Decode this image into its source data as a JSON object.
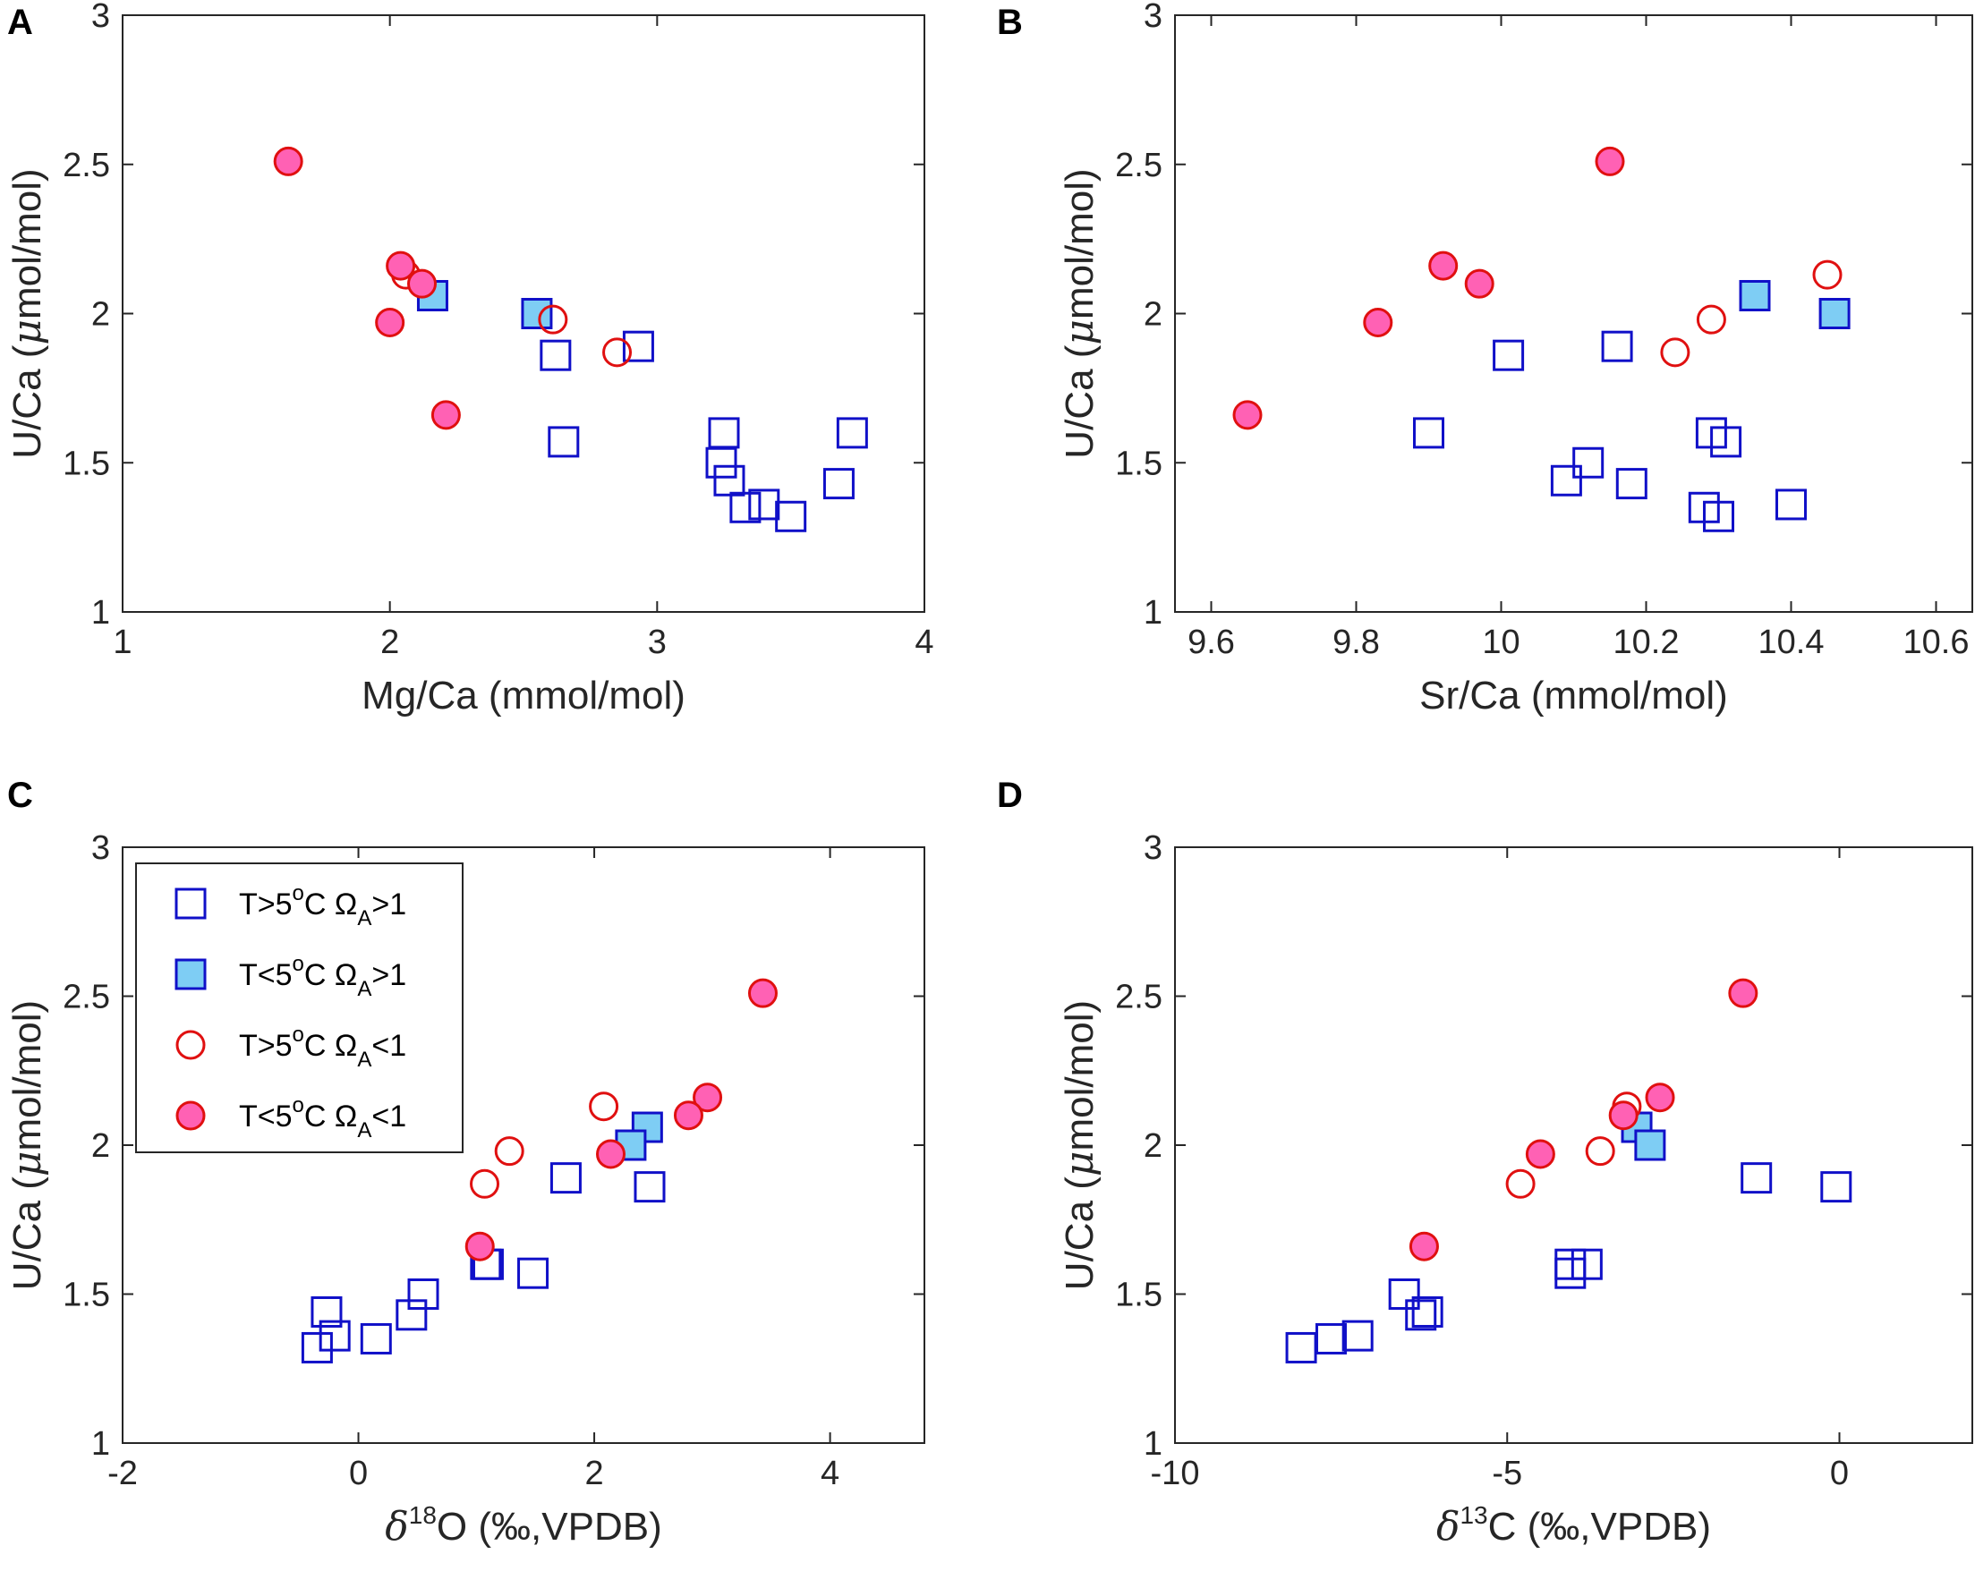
{
  "colors": {
    "blue": "#1010c8",
    "blue_fill": "#7ecdf4",
    "red": "#e01010",
    "pink_fill": "#ff61b4",
    "axis": "#262626"
  },
  "legend": {
    "entries": [
      {
        "key": "open_square",
        "T": "T>5",
        "omega": "Ω",
        "sub": "A",
        "rel": ">1"
      },
      {
        "key": "filled_square",
        "T": "T<5",
        "omega": "Ω",
        "sub": "A",
        "rel": ">1"
      },
      {
        "key": "open_circle",
        "T": "T>5",
        "omega": "Ω",
        "sub": "A",
        "rel": "<1"
      },
      {
        "key": "filled_circle",
        "T": "T<5",
        "omega": "Ω",
        "sub": "A",
        "rel": "<1"
      }
    ],
    "sup": "o",
    "unit": "C"
  },
  "chart_data": [
    {
      "panel": "A",
      "type": "scatter",
      "xlabel": "Mg/Ca (mmol/mol)",
      "ylabel": {
        "pre": "U/Ca (",
        "mu": "μ",
        "post": "mol/mol)"
      },
      "xlim": [
        1,
        4
      ],
      "ylim": [
        1,
        3
      ],
      "xticks": [
        1,
        2,
        3,
        4
      ],
      "xtick_labels": [
        "1",
        "2",
        "3",
        "4"
      ],
      "yticks": [
        1,
        1.5,
        2,
        2.5,
        3
      ],
      "ytick_labels": [
        "1",
        "1.5",
        "2",
        "2.5",
        "3"
      ],
      "series": [
        {
          "name": "open_square",
          "points": [
            [
              2.62,
              1.86
            ],
            [
              2.93,
              1.89
            ],
            [
              2.65,
              1.57
            ],
            [
              3.25,
              1.6
            ],
            [
              3.73,
              1.6
            ],
            [
              3.24,
              1.5
            ],
            [
              3.27,
              1.44
            ],
            [
              3.33,
              1.35
            ],
            [
              3.4,
              1.36
            ],
            [
              3.5,
              1.32
            ],
            [
              3.68,
              1.43
            ]
          ]
        },
        {
          "name": "filled_square",
          "points": [
            [
              2.16,
              2.06
            ],
            [
              2.55,
              2.0
            ]
          ]
        },
        {
          "name": "open_circle",
          "points": [
            [
              2.06,
              2.13
            ],
            [
              2.61,
              1.98
            ],
            [
              2.85,
              1.87
            ]
          ]
        },
        {
          "name": "filled_circle",
          "points": [
            [
              1.62,
              2.51
            ],
            [
              2.04,
              2.16
            ],
            [
              2.12,
              2.1
            ],
            [
              2.0,
              1.97
            ],
            [
              2.21,
              1.66
            ]
          ]
        }
      ]
    },
    {
      "panel": "B",
      "type": "scatter",
      "xlabel": "Sr/Ca (mmol/mol)",
      "ylabel": {
        "pre": "U/Ca (",
        "mu": "μ",
        "post": "mol/mol)"
      },
      "xlim": [
        9.55,
        10.65
      ],
      "ylim": [
        1,
        3
      ],
      "xticks": [
        9.6,
        9.8,
        10,
        10.2,
        10.4,
        10.6
      ],
      "xtick_labels": [
        "9.6",
        "9.8",
        "10",
        "10.2",
        "10.4",
        "10.6"
      ],
      "yticks": [
        1,
        1.5,
        2,
        2.5,
        3
      ],
      "ytick_labels": [
        "1",
        "1.5",
        "2",
        "2.5",
        "3"
      ],
      "series": [
        {
          "name": "open_square",
          "points": [
            [
              10.01,
              1.86
            ],
            [
              10.16,
              1.89
            ],
            [
              9.9,
              1.6
            ],
            [
              10.29,
              1.6
            ],
            [
              10.31,
              1.57
            ],
            [
              10.12,
              1.5
            ],
            [
              10.09,
              1.44
            ],
            [
              10.18,
              1.43
            ],
            [
              10.28,
              1.35
            ],
            [
              10.3,
              1.32
            ],
            [
              10.4,
              1.36
            ]
          ]
        },
        {
          "name": "filled_square",
          "points": [
            [
              10.35,
              2.06
            ],
            [
              10.46,
              2.0
            ]
          ]
        },
        {
          "name": "open_circle",
          "points": [
            [
              10.45,
              2.13
            ],
            [
              10.29,
              1.98
            ],
            [
              10.24,
              1.87
            ]
          ]
        },
        {
          "name": "filled_circle",
          "points": [
            [
              10.15,
              2.51
            ],
            [
              9.92,
              2.16
            ],
            [
              9.97,
              2.1
            ],
            [
              9.83,
              1.97
            ],
            [
              9.65,
              1.66
            ]
          ]
        }
      ]
    },
    {
      "panel": "C",
      "type": "scatter",
      "xlabel": {
        "delta": "δ",
        "sup": "18",
        "rest": "O (‰,VPDB)"
      },
      "ylabel": {
        "pre": "U/Ca (",
        "mu": "μ",
        "post": "mol/mol)"
      },
      "xlim": [
        -2,
        4.8
      ],
      "ylim": [
        1,
        3
      ],
      "xticks": [
        -2,
        0,
        2,
        4
      ],
      "xtick_labels": [
        "-2",
        "0",
        "2",
        "4"
      ],
      "yticks": [
        1,
        1.5,
        2,
        2.5,
        3
      ],
      "ytick_labels": [
        "1",
        "1.5",
        "2",
        "2.5",
        "3"
      ],
      "has_legend": true,
      "series": [
        {
          "name": "open_square",
          "points": [
            [
              2.47,
              1.86
            ],
            [
              1.76,
              1.89
            ],
            [
              1.08,
              1.6
            ],
            [
              1.1,
              1.6
            ],
            [
              1.48,
              1.57
            ],
            [
              0.55,
              1.5
            ],
            [
              -0.27,
              1.44
            ],
            [
              0.45,
              1.43
            ],
            [
              -0.2,
              1.36
            ],
            [
              0.15,
              1.35
            ],
            [
              -0.35,
              1.32
            ]
          ]
        },
        {
          "name": "filled_square",
          "points": [
            [
              2.45,
              2.06
            ],
            [
              2.31,
              2.0
            ]
          ]
        },
        {
          "name": "open_circle",
          "points": [
            [
              2.08,
              2.13
            ],
            [
              1.28,
              1.98
            ],
            [
              1.07,
              1.87
            ]
          ]
        },
        {
          "name": "filled_circle",
          "points": [
            [
              3.43,
              2.51
            ],
            [
              2.96,
              2.16
            ],
            [
              2.8,
              2.1
            ],
            [
              2.14,
              1.97
            ],
            [
              1.03,
              1.66
            ]
          ]
        }
      ]
    },
    {
      "panel": "D",
      "type": "scatter",
      "xlabel": {
        "delta": "δ",
        "sup": "13",
        "rest": "C (‰,VPDB)"
      },
      "ylabel": {
        "pre": "U/Ca (",
        "mu": "μ",
        "post": "mol/mol)"
      },
      "xlim": [
        -10,
        2
      ],
      "ylim": [
        1,
        3
      ],
      "xticks": [
        -10,
        -5,
        0
      ],
      "xtick_labels": [
        "-10",
        "-5",
        "0"
      ],
      "yticks": [
        1,
        1.5,
        2,
        2.5,
        3
      ],
      "ytick_labels": [
        "1",
        "1.5",
        "2",
        "2.5",
        "3"
      ],
      "series": [
        {
          "name": "open_square",
          "points": [
            [
              -0.05,
              1.86
            ],
            [
              -1.25,
              1.89
            ],
            [
              -4.05,
              1.6
            ],
            [
              -3.8,
              1.6
            ],
            [
              -4.05,
              1.57
            ],
            [
              -6.55,
              1.5
            ],
            [
              -6.3,
              1.43
            ],
            [
              -6.2,
              1.44
            ],
            [
              -7.25,
              1.36
            ],
            [
              -7.65,
              1.35
            ],
            [
              -8.1,
              1.32
            ]
          ]
        },
        {
          "name": "filled_square",
          "points": [
            [
              -3.05,
              2.06
            ],
            [
              -2.85,
              2.0
            ]
          ]
        },
        {
          "name": "open_circle",
          "points": [
            [
              -3.2,
              2.13
            ],
            [
              -3.6,
              1.98
            ],
            [
              -4.8,
              1.87
            ]
          ]
        },
        {
          "name": "filled_circle",
          "points": [
            [
              -1.45,
              2.51
            ],
            [
              -2.7,
              2.16
            ],
            [
              -3.25,
              2.1
            ],
            [
              -4.5,
              1.97
            ],
            [
              -6.25,
              1.66
            ]
          ]
        }
      ]
    }
  ]
}
